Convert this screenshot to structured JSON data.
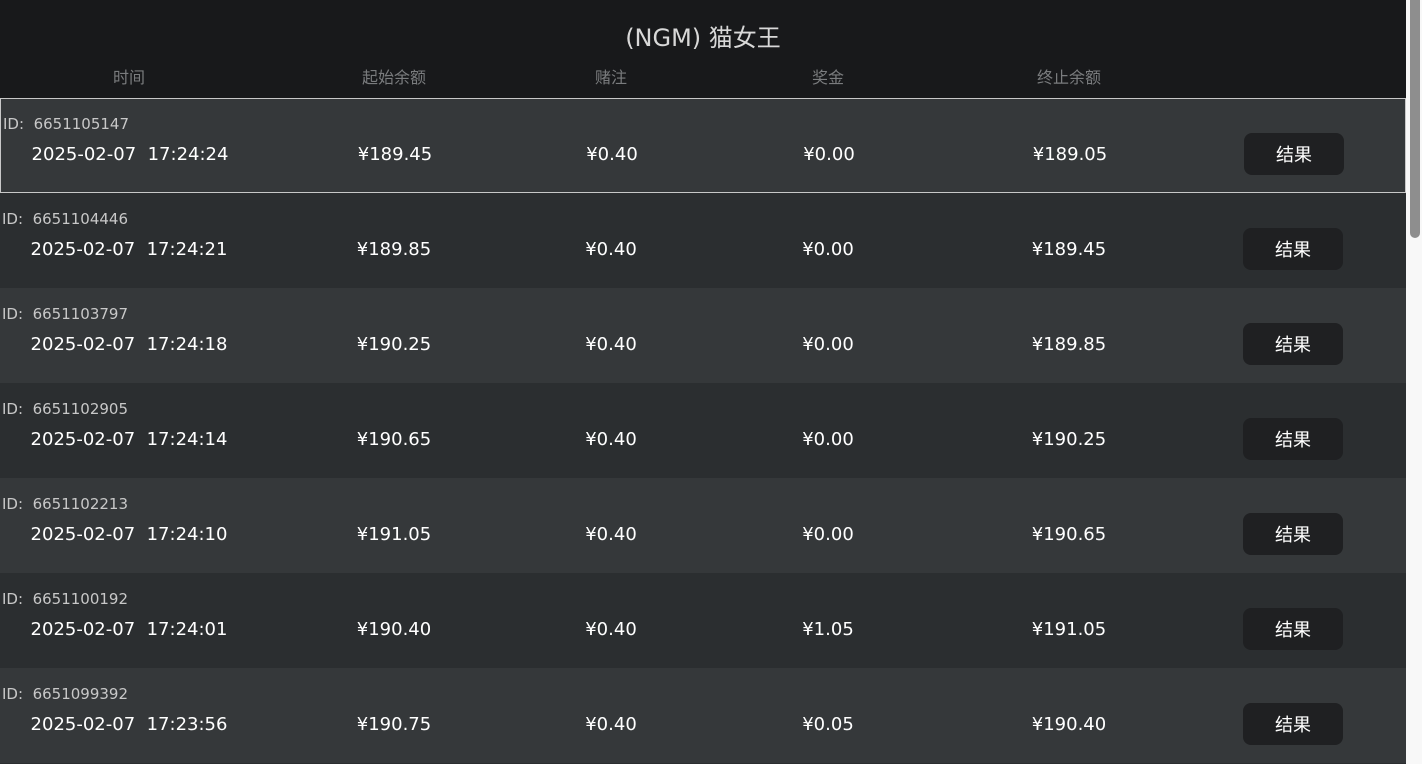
{
  "title": "(NGM) 猫女王",
  "columns": [
    "时间",
    "起始余额",
    "赌注",
    "奖金",
    "终止余额"
  ],
  "id_label": "ID:",
  "result_label": "结果",
  "rows": [
    {
      "id": "6651105147",
      "time": "2025-02-07  17:24:24",
      "start": "¥189.45",
      "bet": "¥0.40",
      "win": "¥0.00",
      "end": "¥189.05"
    },
    {
      "id": "6651104446",
      "time": "2025-02-07  17:24:21",
      "start": "¥189.85",
      "bet": "¥0.40",
      "win": "¥0.00",
      "end": "¥189.45"
    },
    {
      "id": "6651103797",
      "time": "2025-02-07  17:24:18",
      "start": "¥190.25",
      "bet": "¥0.40",
      "win": "¥0.00",
      "end": "¥189.85"
    },
    {
      "id": "6651102905",
      "time": "2025-02-07  17:24:14",
      "start": "¥190.65",
      "bet": "¥0.40",
      "win": "¥0.00",
      "end": "¥190.25"
    },
    {
      "id": "6651102213",
      "time": "2025-02-07  17:24:10",
      "start": "¥191.05",
      "bet": "¥0.40",
      "win": "¥0.00",
      "end": "¥190.65"
    },
    {
      "id": "6651100192",
      "time": "2025-02-07  17:24:01",
      "start": "¥190.40",
      "bet": "¥0.40",
      "win": "¥1.05",
      "end": "¥191.05"
    },
    {
      "id": "6651099392",
      "time": "2025-02-07  17:23:56",
      "start": "¥190.75",
      "bet": "¥0.40",
      "win": "¥0.05",
      "end": "¥190.40"
    }
  ]
}
